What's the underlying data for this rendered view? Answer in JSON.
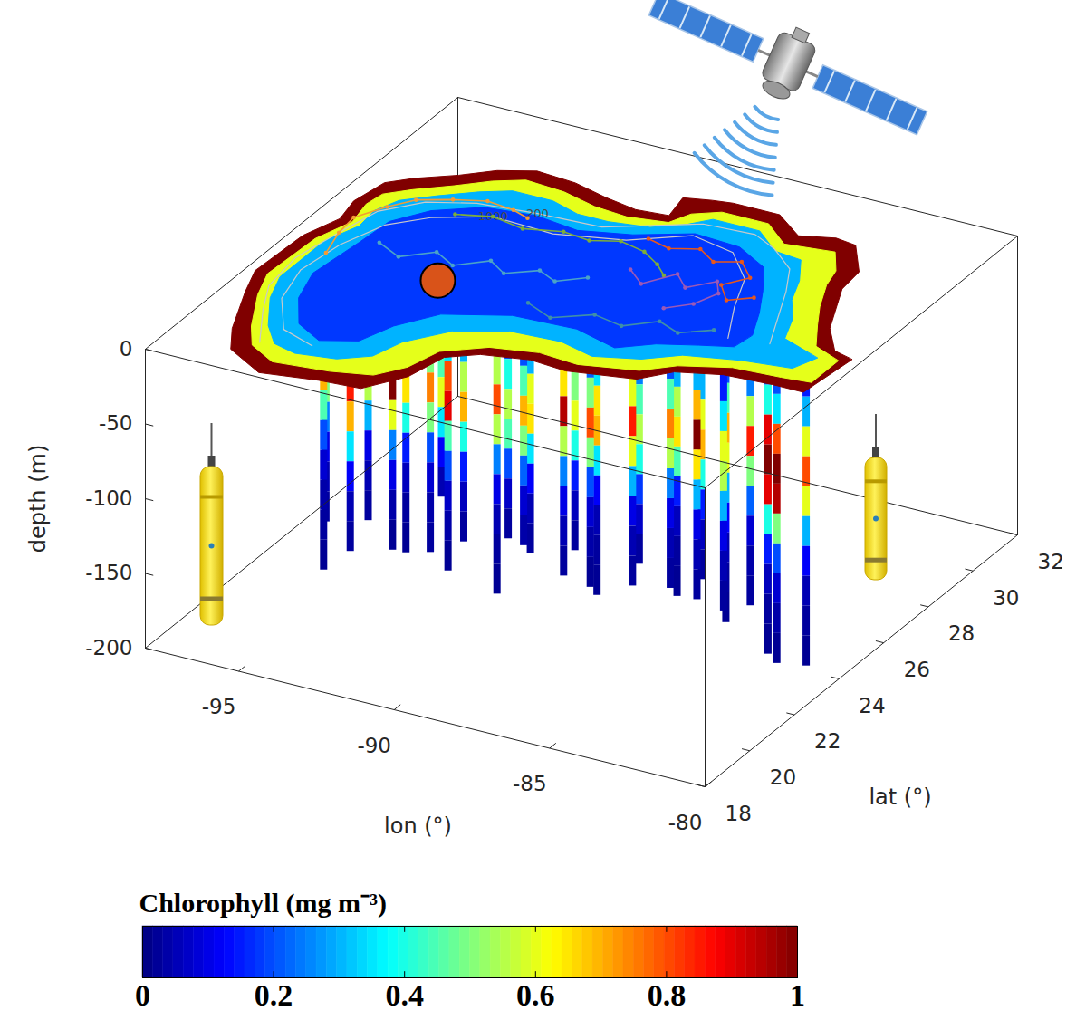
{
  "chart_data": {
    "type": "3d",
    "xlabel": "lon (°)",
    "ylabel": "lat (°)",
    "zlabel": "depth (m)",
    "xlim": [
      -98,
      -80
    ],
    "xticks": [
      -95,
      -90,
      -85,
      -80
    ],
    "ylim": [
      18,
      32
    ],
    "yticks": [
      18,
      20,
      22,
      24,
      26,
      28,
      30,
      32
    ],
    "zlim": [
      -200,
      0
    ],
    "zticks": [
      0,
      -50,
      -100,
      -150,
      -200
    ],
    "colorbar": {
      "label": "Chlorophyll (mg m⁻³)",
      "range": [
        0,
        1
      ],
      "ticks": [
        0,
        0.2,
        0.4,
        0.6,
        0.8,
        1
      ]
    },
    "surface_chlorophyll": [
      {
        "value": 1,
        "lon": [
          -81.0,
          -81.8,
          -82.2,
          -82.7,
          -82.8,
          -83.7,
          -84.4,
          -85.4,
          -86.5,
          -88.0,
          -88.6,
          -89.4,
          -89.2,
          -90.2,
          -91.3,
          -92.5,
          -93.8,
          -94.8,
          -95.6,
          -96.6,
          -97.2,
          -97.4,
          -97.2,
          -97.6,
          -97.7,
          -97.3,
          -96.5,
          -95.9,
          -94.5,
          -92.8,
          -91.5,
          -90.7,
          -90.4,
          -89.6,
          -88.2,
          -87.0,
          -85.0,
          -84.3,
          -83.0,
          -81.5,
          -80.5,
          -80.3
        ],
        "lat": [
          25.2,
          26.1,
          26.9,
          27.9,
          28.8,
          29.9,
          30.0,
          29.7,
          30.4,
          30.4,
          30.3,
          30.1,
          29.2,
          29.1,
          29.3,
          29.6,
          29.7,
          29.3,
          28.7,
          28.1,
          27.6,
          26.5,
          25.6,
          24.5,
          22.5,
          21.5,
          19.8,
          18.9,
          18.2,
          18.5,
          18.6,
          19.6,
          20.8,
          21.3,
          21.6,
          21.5,
          21.9,
          22.6,
          23.0,
          23.1,
          23.1,
          25.0
        ]
      },
      {
        "value": 0.6,
        "lon": [
          -81.6,
          -82.2,
          -82.7,
          -83.2,
          -83.4,
          -84.0,
          -85.5,
          -86.5,
          -88.0,
          -88.7,
          -89.0,
          -90.2,
          -91.3,
          -92.5,
          -93.8,
          -94.6,
          -95.4,
          -96.3,
          -96.9,
          -97.0,
          -96.8,
          -97.2,
          -97.3,
          -96.9,
          -96.1,
          -95.5,
          -94.5,
          -92.8,
          -91.6,
          -91.0,
          -90.7,
          -89.6,
          -88.2,
          -86.9,
          -85.2,
          -84.4,
          -83.0,
          -81.5,
          -80.6,
          -80.6
        ],
        "lat": [
          25.2,
          26.1,
          26.9,
          27.9,
          28.6,
          29.4,
          29.2,
          29.9,
          29.9,
          29.5,
          28.9,
          28.7,
          28.8,
          29.1,
          29.2,
          28.8,
          28.2,
          27.6,
          27.1,
          26.5,
          25.6,
          24.5,
          22.5,
          21.5,
          20.1,
          19.3,
          18.8,
          19.0,
          19.3,
          20.0,
          21.0,
          21.7,
          22.0,
          21.9,
          22.3,
          22.9,
          23.4,
          23.5,
          23.6,
          24.8
        ]
      },
      {
        "value": 0.3,
        "lon": [
          -82.6,
          -83.0,
          -83.6,
          -84.0,
          -84.6,
          -85.5,
          -86.5,
          -88.0,
          -88.5,
          -89.3,
          -90.5,
          -91.5,
          -92.5,
          -93.8,
          -94.6,
          -95.5,
          -96.3,
          -96.6,
          -96.5,
          -96.9,
          -96.9,
          -96.5,
          -95.7,
          -95.0,
          -94.2,
          -93.0,
          -92.2,
          -91.9,
          -91.0,
          -89.6,
          -88.0,
          -86.8,
          -85.5,
          -84.6,
          -83.0,
          -81.5,
          -81.2
        ],
        "lat": [
          25.2,
          26.1,
          26.9,
          27.8,
          28.7,
          28.8,
          29.5,
          29.5,
          29.0,
          28.5,
          28.3,
          28.3,
          28.6,
          28.6,
          28.2,
          27.6,
          27.0,
          26.3,
          25.5,
          24.5,
          22.5,
          21.5,
          20.3,
          19.6,
          19.4,
          19.6,
          20.1,
          21.0,
          22.0,
          22.6,
          22.7,
          22.4,
          22.8,
          23.4,
          23.8,
          24.0,
          24.7
        ]
      },
      {
        "value": 0.18,
        "lon": [
          -83.5,
          -84.0,
          -84.6,
          -85.3,
          -86.5,
          -88.0,
          -89.5,
          -91.0,
          -92.5,
          -94.0,
          -95.2,
          -95.9,
          -96.0,
          -96.2,
          -95.8,
          -95.0,
          -94.0,
          -93.0,
          -92.6,
          -91.8,
          -90.0,
          -88.0,
          -86.5,
          -85.6,
          -84.5,
          -83.6
        ],
        "lat": [
          25.0,
          26.0,
          27.0,
          28.0,
          28.6,
          28.7,
          28.0,
          27.6,
          27.8,
          27.6,
          26.9,
          26.0,
          24.8,
          23.0,
          21.8,
          20.7,
          20.2,
          20.6,
          21.6,
          22.6,
          23.3,
          23.4,
          23.0,
          23.6,
          24.0,
          24.3
        ]
      }
    ],
    "bathymetry_contours": [
      {
        "level": 200,
        "lon": [
          -82.8,
          -83.4,
          -84.0,
          -84.6,
          -85.6,
          -86.5,
          -88.1,
          -88.9,
          -90.5,
          -92.5,
          -94.3,
          -95.6,
          -96.5,
          -96.8,
          -97.1,
          -96.9,
          -96.3,
          -95.4
        ],
        "lat": [
          24.8,
          26.0,
          27.2,
          28.2,
          28.9,
          29.3,
          29.2,
          28.8,
          28.0,
          27.9,
          27.7,
          27.2,
          26.3,
          25.0,
          23.5,
          22.0,
          20.9,
          19.5
        ]
      },
      {
        "level": 1000,
        "lon": [
          -84.0,
          -84.8,
          -85.4,
          -86.5,
          -88.0,
          -89.5,
          -91.5,
          -93.5,
          -95.0,
          -95.9,
          -96.4,
          -96.6,
          -96.2,
          -95.2,
          -94.0
        ],
        "lat": [
          24.6,
          26.0,
          27.3,
          28.3,
          28.6,
          27.7,
          27.2,
          27.3,
          26.6,
          25.8,
          24.5,
          23.0,
          21.6,
          20.3,
          19.9
        ]
      }
    ],
    "float_trajectories": [
      {
        "color": "#f39c34",
        "lon": [
          -96.5,
          -96.8,
          -96.9,
          -96.4,
          -95.9,
          -95.0,
          -94.1,
          -93.2,
          -92.6
        ],
        "lat": [
          24.0,
          25.0,
          25.8,
          26.6,
          27.2,
          27.6,
          27.9,
          27.8,
          27.6
        ]
      },
      {
        "color": "#7cad3a",
        "lon": [
          -94.5,
          -93.5,
          -92.4,
          -91.3,
          -90.4,
          -89.6,
          -88.7,
          -88.0,
          -87.5
        ],
        "lat": [
          27.0,
          27.3,
          27.1,
          27.4,
          27.3,
          27.6,
          27.4,
          27.0,
          26.6
        ]
      },
      {
        "color": "#4aa3c8",
        "lon": [
          -95.5,
          -94.6,
          -93.8,
          -93.0,
          -92.2,
          -91.5,
          -90.7,
          -90.0,
          -89.3
        ],
        "lat": [
          25.0,
          24.6,
          25.2,
          24.8,
          25.4,
          25.0,
          25.5,
          25.2,
          25.7
        ]
      },
      {
        "color": "#9b59b6",
        "lon": [
          -88.5,
          -87.8,
          -87.2,
          -86.6,
          -86.0,
          -85.6,
          -85.9,
          -86.5
        ],
        "lat": [
          26.5,
          26.0,
          26.8,
          26.3,
          26.9,
          26.4,
          25.7,
          25.2
        ]
      },
      {
        "color": "#e8571c",
        "lon": [
          -89.0,
          -88.2,
          -87.4,
          -86.7,
          -86.0,
          -85.3,
          -85.8,
          -85.2,
          -84.6
        ],
        "lat": [
          28.0,
          27.8,
          28.1,
          27.7,
          28.0,
          27.4,
          26.8,
          26.2,
          26.6
        ]
      },
      {
        "color": "#3f8fa8",
        "lon": [
          -90.0,
          -89.0,
          -88.0,
          -87.0,
          -86.2,
          -85.4,
          -84.6
        ],
        "lat": [
          24.0,
          23.6,
          24.2,
          24.0,
          24.6,
          24.3,
          24.8
        ]
      }
    ],
    "station": {
      "lon": -92.9,
      "lat": 24.0,
      "color": "#d95319"
    },
    "profiles": {
      "depth_bins": [
        0,
        -20,
        -40,
        -60,
        -80,
        -100,
        -120,
        -140,
        -160,
        -180,
        -200
      ],
      "items": [
        {
          "lon": -96.5,
          "lat": 24.0,
          "values": [
            0.2,
            0.3,
            0.6,
            0.9,
            0.5,
            0.25,
            0.1,
            0.05,
            0.03,
            null
          ]
        },
        {
          "lon": -96.0,
          "lat": 23.2,
          "values": [
            0.15,
            0.25,
            0.5,
            0.7,
            0.45,
            0.2,
            0.08,
            0.04,
            0.03,
            0.02
          ]
        },
        {
          "lon": -95.5,
          "lat": 24.5,
          "values": [
            0.1,
            0.15,
            0.35,
            0.6,
            0.55,
            0.3,
            0.1,
            0.05,
            0.03,
            null
          ]
        },
        {
          "lon": -95.0,
          "lat": 23.0,
          "values": [
            0.12,
            0.2,
            0.4,
            0.85,
            0.7,
            0.35,
            0.12,
            0.05,
            0.03,
            null
          ]
        },
        {
          "lon": -94.5,
          "lat": 24.8,
          "values": [
            0.1,
            0.12,
            0.3,
            0.5,
            0.65,
            0.4,
            0.15,
            0.06,
            0.03,
            0.02
          ]
        },
        {
          "lon": -94.0,
          "lat": 23.5,
          "values": [
            0.15,
            0.3,
            0.7,
            1.0,
            0.6,
            0.25,
            0.1,
            0.04,
            0.02,
            null
          ]
        },
        {
          "lon": -93.5,
          "lat": 25.0,
          "values": [
            0.1,
            0.15,
            0.25,
            0.45,
            0.6,
            0.35,
            0.12,
            0.05,
            null,
            null
          ]
        },
        {
          "lon": -93.0,
          "lat": 23.8,
          "values": [
            0.12,
            0.2,
            0.5,
            0.75,
            0.5,
            0.2,
            0.08,
            0.04,
            0.03,
            null
          ]
        },
        {
          "lon": -92.5,
          "lat": 24.6,
          "values": [
            0.1,
            0.12,
            0.3,
            0.55,
            0.7,
            0.4,
            0.15,
            0.06,
            0.03,
            null
          ]
        },
        {
          "lon": -92.0,
          "lat": 23.2,
          "values": [
            0.2,
            0.35,
            0.8,
            0.9,
            0.45,
            0.2,
            0.07,
            0.04,
            0.02,
            null
          ]
        },
        {
          "lon": -91.5,
          "lat": 25.2,
          "values": [
            0.1,
            0.12,
            0.2,
            0.4,
            0.55,
            0.45,
            0.2,
            0.07,
            0.03,
            null
          ]
        },
        {
          "lon": -91.0,
          "lat": 24.0,
          "values": [
            0.15,
            0.25,
            0.55,
            0.8,
            0.55,
            0.25,
            0.1,
            0.05,
            0.03,
            0.02
          ]
        },
        {
          "lon": -90.5,
          "lat": 24.8,
          "values": [
            0.1,
            0.15,
            0.3,
            0.6,
            0.65,
            0.35,
            0.12,
            0.05,
            0.03,
            null
          ]
        },
        {
          "lon": -90.0,
          "lat": 23.8,
          "values": [
            0.12,
            0.2,
            0.45,
            0.7,
            0.5,
            0.22,
            0.08,
            0.04,
            null,
            null
          ]
        },
        {
          "lon": -89.5,
          "lat": 25.4,
          "values": [
            0.1,
            0.12,
            0.25,
            0.5,
            0.6,
            0.4,
            0.15,
            0.06,
            0.03,
            null
          ]
        },
        {
          "lon": -89.0,
          "lat": 24.2,
          "values": [
            0.15,
            0.3,
            0.65,
            0.95,
            0.55,
            0.25,
            0.1,
            0.05,
            0.03,
            null
          ]
        },
        {
          "lon": -88.5,
          "lat": 25.0,
          "values": [
            0.1,
            0.15,
            0.35,
            0.65,
            0.7,
            0.35,
            0.12,
            0.05,
            0.03,
            0.02
          ]
        },
        {
          "lon": -88.0,
          "lat": 24.0,
          "values": [
            0.12,
            0.22,
            0.5,
            0.8,
            0.5,
            0.2,
            0.08,
            0.04,
            0.02,
            null
          ]
        },
        {
          "lon": -87.5,
          "lat": 25.5,
          "values": [
            0.1,
            0.12,
            0.25,
            0.45,
            0.55,
            0.4,
            0.18,
            0.07,
            0.03,
            null
          ]
        },
        {
          "lon": -87.0,
          "lat": 24.5,
          "values": [
            0.15,
            0.25,
            0.6,
            0.85,
            0.6,
            0.3,
            0.1,
            0.05,
            0.03,
            null
          ]
        },
        {
          "lon": -86.5,
          "lat": 25.8,
          "values": [
            0.1,
            0.15,
            0.3,
            0.55,
            0.65,
            0.45,
            0.15,
            0.06,
            0.03,
            0.02
          ]
        },
        {
          "lon": -86.0,
          "lat": 24.8,
          "values": [
            0.12,
            0.2,
            0.45,
            0.75,
            0.55,
            0.25,
            0.1,
            0.05,
            0.03,
            null
          ]
        },
        {
          "lon": -85.5,
          "lat": 25.5,
          "values": [
            0.1,
            0.12,
            0.3,
            0.6,
            0.7,
            0.4,
            0.15,
            0.06,
            0.03,
            null
          ]
        },
        {
          "lon": -85.0,
          "lat": 24.6,
          "values": [
            0.15,
            0.3,
            0.7,
            1.0,
            0.65,
            0.3,
            0.1,
            0.05,
            0.03,
            null
          ]
        },
        {
          "lon": -84.5,
          "lat": 25.2,
          "values": [
            0.12,
            0.2,
            0.45,
            0.7,
            0.6,
            0.3,
            0.12,
            0.05,
            0.03,
            0.02
          ]
        },
        {
          "lon": -84.0,
          "lat": 24.4,
          "values": [
            0.1,
            0.15,
            0.35,
            0.6,
            0.55,
            0.3,
            0.1,
            0.05,
            0.03,
            null
          ]
        },
        {
          "lon": -83.5,
          "lat": 24.9,
          "values": [
            0.15,
            0.25,
            0.55,
            0.85,
            0.5,
            0.22,
            0.08,
            0.04,
            0.03,
            null
          ]
        },
        {
          "lon": -82.5,
          "lat": 24.3,
          "values": [
            0.2,
            0.4,
            0.9,
            1.0,
            0.9,
            0.4,
            0.15,
            0.06,
            0.03,
            0.02
          ]
        },
        {
          "lon": -82.0,
          "lat": 24.0,
          "values": [
            0.2,
            0.35,
            0.8,
            1.0,
            0.95,
            0.5,
            0.2,
            0.08,
            0.04,
            0.02
          ]
        },
        {
          "lon": -81.2,
          "lat": 24.2,
          "values": [
            0.15,
            0.3,
            0.6,
            0.8,
            0.6,
            0.3,
            0.12,
            0.05,
            0.03,
            0.02
          ]
        }
      ]
    }
  }
}
